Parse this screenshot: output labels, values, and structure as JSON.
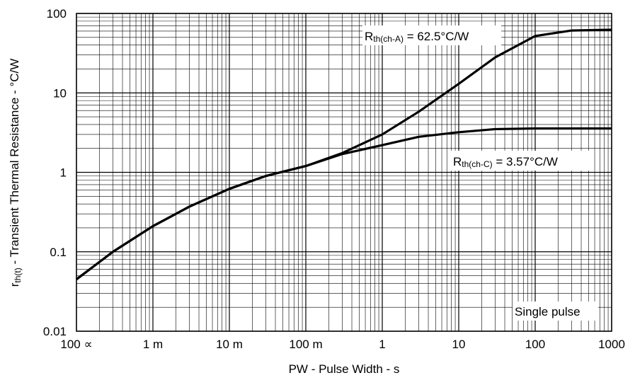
{
  "chart_data": {
    "type": "line",
    "x_label": "PW - Pulse Width - s",
    "y_label": {
      "main": "r",
      "sub": "th(t)",
      "rest": " - Transient Thermal Resistance - °C/W"
    },
    "x": [
      0.0001,
      0.0003,
      0.001,
      0.003,
      0.01,
      0.03,
      0.1,
      0.3,
      1,
      3,
      10,
      30,
      100,
      300,
      1000
    ],
    "series": [
      {
        "color": "#000000",
        "values": [
          0.045,
          0.1,
          0.21,
          0.37,
          0.62,
          0.9,
          1.2,
          1.75,
          3.0,
          5.8,
          13,
          28,
          52,
          61,
          62.5
        ]
      },
      {
        "color": "#000000",
        "values": [
          0.045,
          0.1,
          0.21,
          0.37,
          0.62,
          0.9,
          1.2,
          1.7,
          2.2,
          2.8,
          3.2,
          3.5,
          3.57,
          3.57,
          3.57
        ]
      }
    ],
    "xlim": [
      0.0001,
      1000
    ],
    "ylim": [
      0.01,
      100
    ],
    "xticks": [
      {
        "value": 0.0001,
        "label": "100 ∝"
      },
      {
        "value": 0.001,
        "label": "1 m"
      },
      {
        "value": 0.01,
        "label": "10 m"
      },
      {
        "value": 0.1,
        "label": "100 m"
      },
      1,
      10,
      100,
      1000
    ],
    "yticks": [
      0.01,
      0.1,
      1,
      10,
      100
    ],
    "log_x": true,
    "log_y": true,
    "grid": true,
    "minor_grid": true,
    "annotations": [
      {
        "main": "R",
        "sub": "th(ch-A)",
        "rest": " = 62.5°C/W"
      },
      {
        "main": "R",
        "sub": "th(ch-C)",
        "rest": " = 3.57°C/W"
      },
      {
        "main": "Single pulse"
      }
    ]
  }
}
